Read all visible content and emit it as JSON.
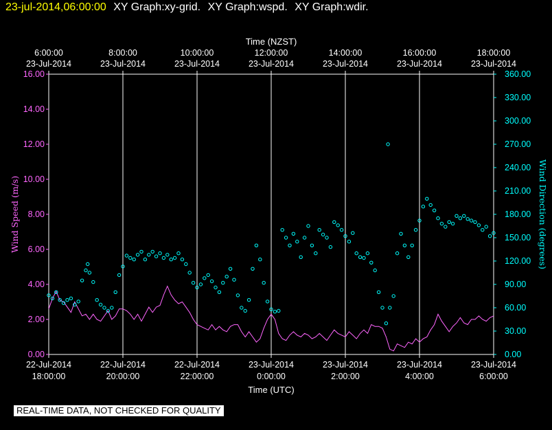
{
  "header": {
    "timestamp": "23-jul-2014,06:00:00",
    "graphs": [
      "XY Graph:xy-grid.",
      "XY Graph:wspd.",
      "XY Graph:wdir."
    ]
  },
  "note": "REAL-TIME DATA, NOT CHECKED FOR QUALITY",
  "colors": {
    "speed": "#ff66ff",
    "direction": "#00ffff",
    "grid": "#ffffff",
    "header": "#ffff00"
  },
  "chart_data": {
    "type": "scatter",
    "top_axis_title": "Time (NZST)",
    "bottom_axis_title": "Time (UTC)",
    "top_ticks": [
      {
        "time": "6:00:00",
        "date": "23-Jul-2014"
      },
      {
        "time": "8:00:00",
        "date": "23-Jul-2014"
      },
      {
        "time": "10:00:00",
        "date": "23-Jul-2014"
      },
      {
        "time": "12:00:00",
        "date": "23-Jul-2014"
      },
      {
        "time": "14:00:00",
        "date": "23-Jul-2014"
      },
      {
        "time": "16:00:00",
        "date": "23-Jul-2014"
      },
      {
        "time": "18:00:00",
        "date": "23-Jul-2014"
      }
    ],
    "bottom_ticks": [
      {
        "date": "22-Jul-2014",
        "time": "18:00:00"
      },
      {
        "date": "22-Jul-2014",
        "time": "20:00:00"
      },
      {
        "date": "22-Jul-2014",
        "time": "22:00:00"
      },
      {
        "date": "23-Jul-2014",
        "time": "0:00:00"
      },
      {
        "date": "23-Jul-2014",
        "time": "2:00:00"
      },
      {
        "date": "23-Jul-2014",
        "time": "4:00:00"
      },
      {
        "date": "23-Jul-2014",
        "time": "6:00:00"
      }
    ],
    "x_unit": "hours since 22-Jul-2014 18:00 UTC",
    "xlim": [
      0,
      12
    ],
    "left_axis": {
      "label": "Wind Speed (m/s)",
      "ylim": [
        0,
        16
      ],
      "ticks": [
        "0.00",
        "2.00",
        "4.00",
        "6.00",
        "8.00",
        "10.00",
        "12.00",
        "14.00",
        "16.00"
      ]
    },
    "right_axis": {
      "label": "Wind Direction (degrees)",
      "ylim": [
        0,
        360
      ],
      "ticks": [
        "0.00",
        "30.00",
        "60.00",
        "90.00",
        "120.00",
        "150.00",
        "180.00",
        "210.00",
        "240.00",
        "270.00",
        "300.00",
        "330.00",
        "360.00"
      ]
    },
    "series": [
      {
        "name": "wspd",
        "type": "line",
        "axis": "left",
        "points": [
          [
            0,
            2.6
          ],
          [
            0.1,
            3.2
          ],
          [
            0.2,
            3.6
          ],
          [
            0.3,
            3.1
          ],
          [
            0.4,
            3.0
          ],
          [
            0.5,
            2.7
          ],
          [
            0.6,
            2.4
          ],
          [
            0.7,
            3.0
          ],
          [
            0.8,
            2.6
          ],
          [
            0.9,
            2.2
          ],
          [
            1.0,
            2.3
          ],
          [
            1.1,
            2.0
          ],
          [
            1.2,
            2.3
          ],
          [
            1.3,
            2.0
          ],
          [
            1.4,
            1.9
          ],
          [
            1.5,
            2.2
          ],
          [
            1.6,
            2.5
          ],
          [
            1.7,
            2.0
          ],
          [
            1.8,
            2.2
          ],
          [
            1.9,
            2.6
          ],
          [
            2.0,
            2.6
          ],
          [
            2.1,
            2.5
          ],
          [
            2.2,
            2.3
          ],
          [
            2.3,
            2.0
          ],
          [
            2.4,
            2.3
          ],
          [
            2.5,
            1.9
          ],
          [
            2.6,
            2.3
          ],
          [
            2.7,
            2.7
          ],
          [
            2.8,
            2.4
          ],
          [
            2.9,
            2.7
          ],
          [
            3.0,
            2.8
          ],
          [
            3.1,
            3.4
          ],
          [
            3.2,
            3.9
          ],
          [
            3.3,
            3.4
          ],
          [
            3.4,
            3.1
          ],
          [
            3.5,
            2.9
          ],
          [
            3.6,
            3.0
          ],
          [
            3.7,
            2.7
          ],
          [
            3.8,
            2.4
          ],
          [
            3.9,
            2.0
          ],
          [
            4.0,
            1.7
          ],
          [
            4.1,
            1.6
          ],
          [
            4.2,
            1.5
          ],
          [
            4.3,
            1.4
          ],
          [
            4.4,
            1.7
          ],
          [
            4.5,
            1.4
          ],
          [
            4.6,
            1.6
          ],
          [
            4.7,
            1.4
          ],
          [
            4.8,
            1.3
          ],
          [
            4.9,
            1.6
          ],
          [
            5.0,
            1.7
          ],
          [
            5.1,
            1.7
          ],
          [
            5.2,
            1.3
          ],
          [
            5.3,
            1.0
          ],
          [
            5.4,
            1.3
          ],
          [
            5.5,
            1.0
          ],
          [
            5.6,
            0.7
          ],
          [
            5.7,
            0.9
          ],
          [
            5.8,
            1.5
          ],
          [
            5.9,
            2.0
          ],
          [
            6.0,
            2.3
          ],
          [
            6.1,
            2.0
          ],
          [
            6.2,
            1.2
          ],
          [
            6.3,
            0.9
          ],
          [
            6.4,
            0.8
          ],
          [
            6.5,
            1.1
          ],
          [
            6.6,
            1.3
          ],
          [
            6.7,
            1.1
          ],
          [
            6.8,
            1.0
          ],
          [
            6.9,
            1.2
          ],
          [
            7.0,
            1.1
          ],
          [
            7.1,
            0.9
          ],
          [
            7.2,
            1.0
          ],
          [
            7.3,
            1.2
          ],
          [
            7.4,
            1.0
          ],
          [
            7.5,
            0.8
          ],
          [
            7.6,
            1.1
          ],
          [
            7.7,
            1.4
          ],
          [
            7.8,
            1.2
          ],
          [
            7.9,
            1.1
          ],
          [
            8.0,
            1.0
          ],
          [
            8.1,
            1.3
          ],
          [
            8.2,
            1.1
          ],
          [
            8.3,
            0.9
          ],
          [
            8.4,
            1.2
          ],
          [
            8.5,
            1.4
          ],
          [
            8.6,
            1.2
          ],
          [
            8.7,
            1.7
          ],
          [
            8.8,
            1.6
          ],
          [
            8.9,
            1.6
          ],
          [
            9.0,
            1.5
          ],
          [
            9.1,
            1.0
          ],
          [
            9.2,
            0.3
          ],
          [
            9.3,
            0.2
          ],
          [
            9.4,
            0.6
          ],
          [
            9.5,
            0.5
          ],
          [
            9.6,
            0.4
          ],
          [
            9.7,
            0.7
          ],
          [
            9.8,
            0.6
          ],
          [
            9.9,
            0.9
          ],
          [
            10.0,
            0.7
          ],
          [
            10.1,
            0.9
          ],
          [
            10.2,
            1.0
          ],
          [
            10.3,
            1.4
          ],
          [
            10.4,
            1.7
          ],
          [
            10.5,
            2.3
          ],
          [
            10.6,
            1.9
          ],
          [
            10.7,
            1.6
          ],
          [
            10.8,
            1.3
          ],
          [
            10.9,
            1.6
          ],
          [
            11.0,
            1.8
          ],
          [
            11.1,
            2.1
          ],
          [
            11.2,
            1.8
          ],
          [
            11.3,
            1.7
          ],
          [
            11.4,
            2.0
          ],
          [
            11.5,
            2.0
          ],
          [
            11.6,
            2.2
          ],
          [
            11.7,
            2.0
          ],
          [
            11.8,
            1.9
          ],
          [
            11.9,
            2.1
          ],
          [
            12.0,
            2.2
          ]
        ]
      },
      {
        "name": "wdir",
        "type": "scatter",
        "axis": "right",
        "points": [
          [
            0,
            76
          ],
          [
            0.1,
            72
          ],
          [
            0.2,
            80
          ],
          [
            0.3,
            70
          ],
          [
            0.4,
            66
          ],
          [
            0.5,
            70
          ],
          [
            0.6,
            72
          ],
          [
            0.7,
            64
          ],
          [
            0.8,
            68
          ],
          [
            0.9,
            95
          ],
          [
            1.0,
            108
          ],
          [
            1.05,
            116
          ],
          [
            1.1,
            105
          ],
          [
            1.2,
            93
          ],
          [
            1.3,
            70
          ],
          [
            1.4,
            64
          ],
          [
            1.5,
            60
          ],
          [
            1.6,
            56
          ],
          [
            1.7,
            60
          ],
          [
            1.8,
            80
          ],
          [
            1.9,
            102
          ],
          [
            2.0,
            113
          ],
          [
            2.1,
            127
          ],
          [
            2.2,
            124
          ],
          [
            2.3,
            122
          ],
          [
            2.4,
            128
          ],
          [
            2.5,
            132
          ],
          [
            2.6,
            122
          ],
          [
            2.7,
            128
          ],
          [
            2.8,
            132
          ],
          [
            2.9,
            126
          ],
          [
            3.0,
            130
          ],
          [
            3.1,
            124
          ],
          [
            3.2,
            128
          ],
          [
            3.3,
            122
          ],
          [
            3.4,
            124
          ],
          [
            3.5,
            130
          ],
          [
            3.6,
            122
          ],
          [
            3.7,
            116
          ],
          [
            3.8,
            105
          ],
          [
            3.9,
            92
          ],
          [
            4.0,
            86
          ],
          [
            4.1,
            90
          ],
          [
            4.2,
            98
          ],
          [
            4.3,
            102
          ],
          [
            4.4,
            94
          ],
          [
            4.5,
            86
          ],
          [
            4.6,
            80
          ],
          [
            4.7,
            92
          ],
          [
            4.8,
            100
          ],
          [
            4.9,
            110
          ],
          [
            5.0,
            96
          ],
          [
            5.1,
            76
          ],
          [
            5.2,
            60
          ],
          [
            5.3,
            56
          ],
          [
            5.4,
            70
          ],
          [
            5.5,
            110
          ],
          [
            5.6,
            140
          ],
          [
            5.7,
            122
          ],
          [
            5.8,
            92
          ],
          [
            5.9,
            68
          ],
          [
            6.0,
            58
          ],
          [
            6.1,
            55
          ],
          [
            6.2,
            56
          ],
          [
            6.3,
            160
          ],
          [
            6.4,
            150
          ],
          [
            6.5,
            140
          ],
          [
            6.6,
            155
          ],
          [
            6.7,
            145
          ],
          [
            6.8,
            125
          ],
          [
            6.9,
            150
          ],
          [
            7.0,
            165
          ],
          [
            7.1,
            140
          ],
          [
            7.2,
            130
          ],
          [
            7.3,
            160
          ],
          [
            7.4,
            154
          ],
          [
            7.5,
            150
          ],
          [
            7.6,
            138
          ],
          [
            7.7,
            170
          ],
          [
            7.8,
            166
          ],
          [
            7.9,
            160
          ],
          [
            8.0,
            152
          ],
          [
            8.1,
            145
          ],
          [
            8.2,
            156
          ],
          [
            8.3,
            130
          ],
          [
            8.4,
            125
          ],
          [
            8.5,
            124
          ],
          [
            8.6,
            130
          ],
          [
            8.7,
            118
          ],
          [
            8.8,
            108
          ],
          [
            8.9,
            80
          ],
          [
            9.0,
            60
          ],
          [
            9.1,
            40
          ],
          [
            9.15,
            270
          ],
          [
            9.2,
            60
          ],
          [
            9.3,
            75
          ],
          [
            9.4,
            130
          ],
          [
            9.5,
            155
          ],
          [
            9.6,
            140
          ],
          [
            9.7,
            125
          ],
          [
            9.8,
            140
          ],
          [
            9.9,
            160
          ],
          [
            10.0,
            172
          ],
          [
            10.1,
            190
          ],
          [
            10.2,
            200
          ],
          [
            10.3,
            192
          ],
          [
            10.4,
            185
          ],
          [
            10.5,
            175
          ],
          [
            10.6,
            168
          ],
          [
            10.7,
            164
          ],
          [
            10.8,
            170
          ],
          [
            10.9,
            168
          ],
          [
            11.0,
            178
          ],
          [
            11.1,
            175
          ],
          [
            11.2,
            178
          ],
          [
            11.3,
            174
          ],
          [
            11.4,
            172
          ],
          [
            11.5,
            170
          ],
          [
            11.6,
            166
          ],
          [
            11.7,
            160
          ],
          [
            11.8,
            164
          ],
          [
            11.9,
            152
          ],
          [
            12.0,
            156
          ]
        ]
      }
    ],
    "grid": "vertical"
  }
}
